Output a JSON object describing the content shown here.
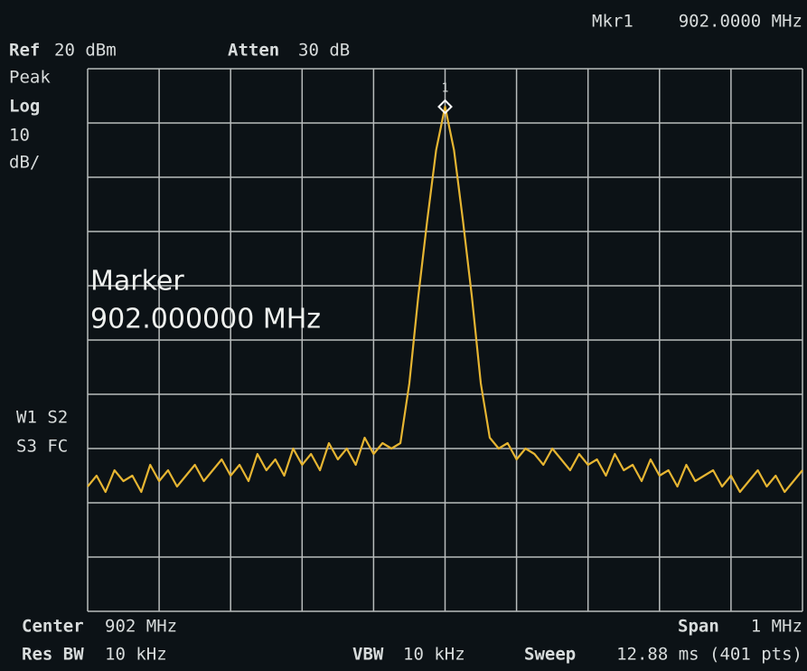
{
  "chart_data": {
    "type": "line",
    "header": {
      "marker_readout": "Mkr1",
      "marker_freq": "902.0000 MHz",
      "ref_label": "Ref",
      "ref_value": "20 dBm",
      "atten_label": "Atten",
      "atten_value": "30 dB"
    },
    "side": {
      "detector": "Peak",
      "scale_type": "Log",
      "scale_num": "10",
      "scale_unit": "dB/",
      "flags1": "W1 S2",
      "flags2": "S3 FC"
    },
    "annotation": {
      "title": "Marker",
      "value": "902.000000 MHz"
    },
    "footer": {
      "center_label": "Center",
      "center_value": "902 MHz",
      "span_label": "Span",
      "span_value": "1 MHz",
      "rbw_label": "Res BW",
      "rbw_value": "10 kHz",
      "vbw_label": "VBW",
      "vbw_value": "10 kHz",
      "sweep_label": "Sweep",
      "sweep_value": "12.88 ms (401 pts)"
    },
    "marker": {
      "label": "1",
      "x": 902.0,
      "y": 13
    },
    "xlim": [
      901.5,
      902.5
    ],
    "ylim": [
      -80,
      20
    ],
    "xticks": [
      901.5,
      901.6,
      901.7,
      901.8,
      901.9,
      902,
      902.1,
      902.2,
      902.3,
      902.4,
      902.5
    ],
    "yticks": [
      20,
      10,
      0,
      -10,
      -20,
      -30,
      -40,
      -50,
      -60,
      -70,
      -80
    ],
    "grid": true,
    "x": [
      901.5,
      901.5125,
      901.525,
      901.5375,
      901.55,
      901.5625,
      901.575,
      901.5875,
      901.6,
      901.6125,
      901.625,
      901.6375,
      901.65,
      901.6625,
      901.675,
      901.6875,
      901.7,
      901.7125,
      901.725,
      901.7375,
      901.75,
      901.7625,
      901.775,
      901.7875,
      901.8,
      901.8125,
      901.825,
      901.8375,
      901.85,
      901.8625,
      901.875,
      901.8875,
      901.9,
      901.9125,
      901.925,
      901.9375,
      901.95,
      901.9625,
      901.975,
      901.9875,
      902,
      902.0125,
      902.025,
      902.0375,
      902.05,
      902.0625,
      902.075,
      902.0875,
      902.1,
      902.1125,
      902.125,
      902.1375,
      902.15,
      902.1625,
      902.175,
      902.1875,
      902.2,
      902.2125,
      902.225,
      902.2375,
      902.25,
      902.2625,
      902.275,
      902.2875,
      902.3,
      902.3125,
      902.325,
      902.3375,
      902.35,
      902.3625,
      902.375,
      902.3875,
      902.4,
      902.4125,
      902.425,
      902.4375,
      902.45,
      902.4625,
      902.475,
      902.4875,
      902.5
    ],
    "series": [
      {
        "color": "#e6b532",
        "values": [
          -57,
          -55,
          -58,
          -54,
          -56,
          -55,
          -58,
          -53,
          -56,
          -54,
          -57,
          -55,
          -53,
          -56,
          -54,
          -52,
          -55,
          -53,
          -56,
          -51,
          -54,
          -52,
          -55,
          -50,
          -53,
          -51,
          -54,
          -49,
          -52,
          -50,
          -53,
          -48,
          -51,
          -49,
          -50,
          -49,
          -38,
          -22,
          -8,
          5,
          13,
          5,
          -8,
          -22,
          -38,
          -48,
          -50,
          -49,
          -52,
          -50,
          -51,
          -53,
          -50,
          -52,
          -54,
          -51,
          -53,
          -52,
          -55,
          -51,
          -54,
          -53,
          -56,
          -52,
          -55,
          -54,
          -57,
          -53,
          -56,
          -55,
          -54,
          -57,
          -55,
          -58,
          -56,
          -54,
          -57,
          -55,
          -58,
          -56,
          -54
        ]
      }
    ]
  }
}
